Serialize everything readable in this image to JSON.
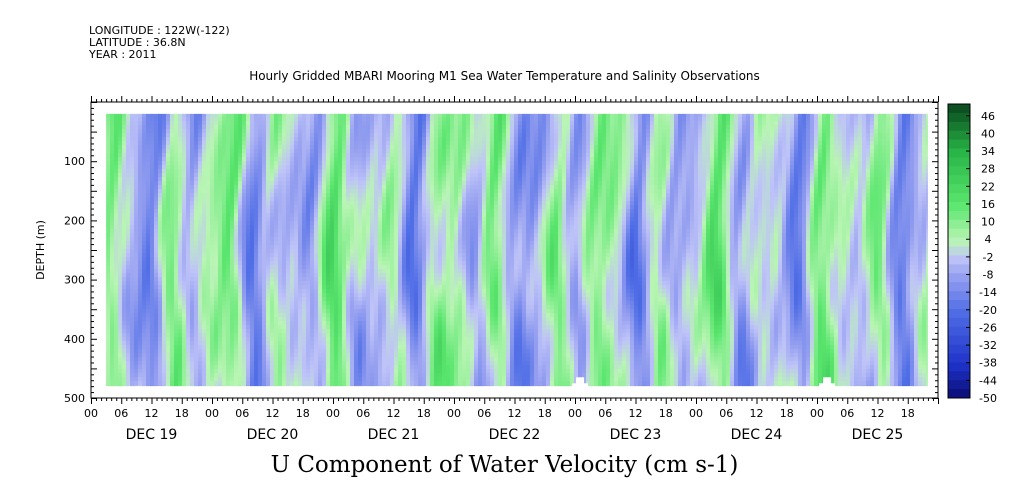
{
  "header": {
    "longitude": "LONGITUDE : 122W(-122)",
    "latitude": "LATITUDE : 36.8N",
    "year": "YEAR : 2011"
  },
  "title": "Hourly Gridded MBARI Mooring M1 Sea Water Temperature and Salinity Observations",
  "bottom_title": "U Component of Water Velocity (cm s-1)",
  "chart_data": {
    "type": "heatmap",
    "title": "Hourly Gridded MBARI Mooring M1 Sea Water Temperature and Salinity Observations",
    "variable": "U Component of Water Velocity (cm s-1)",
    "xlabel": "",
    "ylabel": "DEPTH (m)",
    "ylim": [
      500,
      0
    ],
    "y_inverted": true,
    "y_ticks": [
      100,
      200,
      300,
      400,
      500
    ],
    "data_depth_range": [
      20,
      480
    ],
    "x_hour_range": [
      0,
      168
    ],
    "data_hour_range": [
      3,
      166
    ],
    "x_hour_tick_labels": [
      "00",
      "06",
      "12",
      "18",
      "00",
      "06",
      "12",
      "18",
      "00",
      "06",
      "12",
      "18",
      "00",
      "06",
      "12",
      "18",
      "00",
      "06",
      "12",
      "18",
      "00",
      "06",
      "12",
      "18",
      "00",
      "06",
      "12",
      "18"
    ],
    "x_day_labels": [
      "DEC 19",
      "DEC 20",
      "DEC 21",
      "DEC 22",
      "DEC 23",
      "DEC 24",
      "DEC 25"
    ],
    "colorbar": {
      "min": -50,
      "max": 50,
      "step": 3,
      "labels": [
        "46",
        "40",
        "34",
        "28",
        "22",
        "16",
        "10",
        "4",
        "-2",
        "-8",
        "-14",
        "-20",
        "-26",
        "-32",
        "-38",
        "-44",
        "-50"
      ],
      "colors": {
        "deep_negative": "#0a0a6e",
        "negative": "#3b5ad6",
        "near_zero_negative": "#aab2f0",
        "near_zero_positive": "#b7f0b0",
        "positive": "#3ee06a",
        "deep_positive": "#0b4d1e"
      }
    },
    "missing_regions": [
      {
        "day": "DEC 23",
        "hour": 1,
        "depth": [
          465,
          480
        ]
      },
      {
        "day": "DEC 25",
        "hour": 2,
        "depth": [
          465,
          480
        ]
      }
    ],
    "grid": false
  }
}
